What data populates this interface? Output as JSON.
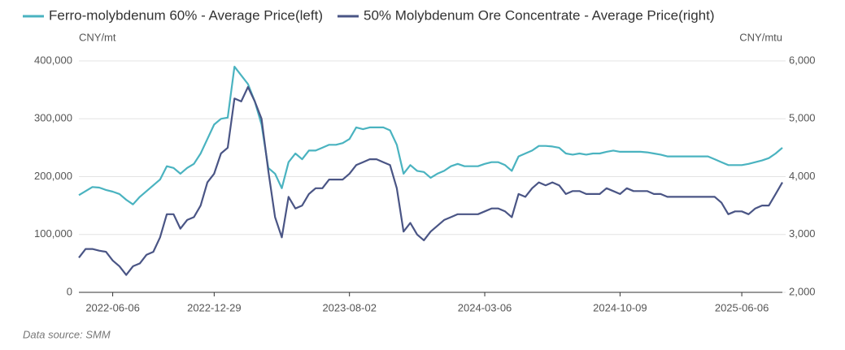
{
  "chart_data": {
    "type": "line",
    "series": [
      {
        "name": "Ferro-molybdenum 60% - Average Price(left)",
        "color": "#4ab3c0",
        "axis": "y",
        "values": [
          168000,
          175000,
          182000,
          181000,
          177000,
          174000,
          170000,
          160000,
          152000,
          165000,
          175000,
          185000,
          195000,
          218000,
          215000,
          205000,
          215000,
          222000,
          240000,
          265000,
          290000,
          300000,
          302000,
          390000,
          375000,
          360000,
          330000,
          290000,
          215000,
          205000,
          180000,
          225000,
          240000,
          230000,
          245000,
          245000,
          250000,
          255000,
          255000,
          258000,
          265000,
          285000,
          282000,
          285000,
          285000,
          285000,
          280000,
          255000,
          205000,
          220000,
          210000,
          208000,
          198000,
          205000,
          210000,
          218000,
          222000,
          218000,
          218000,
          218000,
          222000,
          225000,
          225000,
          220000,
          210000,
          235000,
          240000,
          245000,
          253000,
          253000,
          252000,
          250000,
          240000,
          238000,
          240000,
          238000,
          240000,
          240000,
          243000,
          245000,
          243000,
          243000,
          243000,
          243000,
          242000,
          240000,
          238000,
          235000,
          235000,
          235000,
          235000,
          235000,
          235000,
          235000,
          230000,
          225000,
          220000,
          220000,
          220000,
          222000,
          225000,
          228000,
          232000,
          240000,
          250000
        ]
      },
      {
        "name": "50% Molybdenum Ore Concentrate - Average Price(right)",
        "color": "#4a5585",
        "axis": "y2",
        "values": [
          2600,
          2750,
          2750,
          2720,
          2700,
          2550,
          2450,
          2300,
          2450,
          2500,
          2650,
          2700,
          2950,
          3350,
          3350,
          3100,
          3250,
          3300,
          3500,
          3900,
          4050,
          4400,
          4500,
          5350,
          5300,
          5550,
          5300,
          5000,
          4100,
          3300,
          2950,
          3650,
          3450,
          3500,
          3700,
          3800,
          3800,
          3950,
          3950,
          3950,
          4050,
          4200,
          4250,
          4300,
          4300,
          4250,
          4200,
          3800,
          3050,
          3200,
          3000,
          2900,
          3050,
          3150,
          3250,
          3300,
          3350,
          3350,
          3350,
          3350,
          3400,
          3450,
          3450,
          3400,
          3300,
          3700,
          3650,
          3800,
          3900,
          3850,
          3900,
          3850,
          3700,
          3750,
          3750,
          3700,
          3700,
          3700,
          3800,
          3750,
          3700,
          3800,
          3750,
          3750,
          3750,
          3700,
          3700,
          3650,
          3650,
          3650,
          3650,
          3650,
          3650,
          3650,
          3650,
          3550,
          3350,
          3400,
          3400,
          3350,
          3450,
          3500,
          3500,
          3700,
          3900
        ]
      }
    ],
    "categories": [
      null,
      null,
      null,
      null,
      null,
      "2022-06-06",
      null,
      null,
      null,
      null,
      null,
      null,
      null,
      null,
      null,
      null,
      null,
      null,
      null,
      null,
      "2022-12-29",
      null,
      null,
      null,
      null,
      null,
      null,
      null,
      null,
      null,
      null,
      null,
      null,
      null,
      null,
      null,
      null,
      null,
      null,
      null,
      "2023-08-02",
      null,
      null,
      null,
      null,
      null,
      null,
      null,
      null,
      null,
      null,
      null,
      null,
      null,
      null,
      null,
      null,
      null,
      null,
      null,
      "2024-03-06",
      null,
      null,
      null,
      null,
      null,
      null,
      null,
      null,
      null,
      null,
      null,
      null,
      null,
      null,
      null,
      null,
      null,
      null,
      null,
      "2024-10-09",
      null,
      null,
      null,
      null,
      null,
      null,
      null,
      null,
      null,
      null,
      null,
      null,
      null,
      null,
      null,
      null,
      null,
      "2025-06-06",
      null,
      null,
      null,
      null,
      null,
      null
    ],
    "y_unit": "CNY/mt",
    "y2_unit": "CNY/mtu",
    "ylim": [
      0,
      400000
    ],
    "yticks": [
      0,
      {
        "value": 100000,
        "label": "100,000"
      },
      {
        "value": 200000,
        "label": "200,000"
      },
      {
        "value": 300000,
        "label": "300,000"
      },
      {
        "value": 400000,
        "label": "400,000"
      }
    ],
    "y2lim": [
      2000,
      6000
    ],
    "y2ticks": [
      {
        "value": 2000,
        "label": "2,000"
      },
      {
        "value": 3000,
        "label": "3,000"
      },
      {
        "value": 4000,
        "label": "4,000"
      },
      {
        "value": 5000,
        "label": "5,000"
      },
      {
        "value": 6000,
        "label": "6,000"
      }
    ],
    "grid": true,
    "source": "Data source:  SMM"
  }
}
